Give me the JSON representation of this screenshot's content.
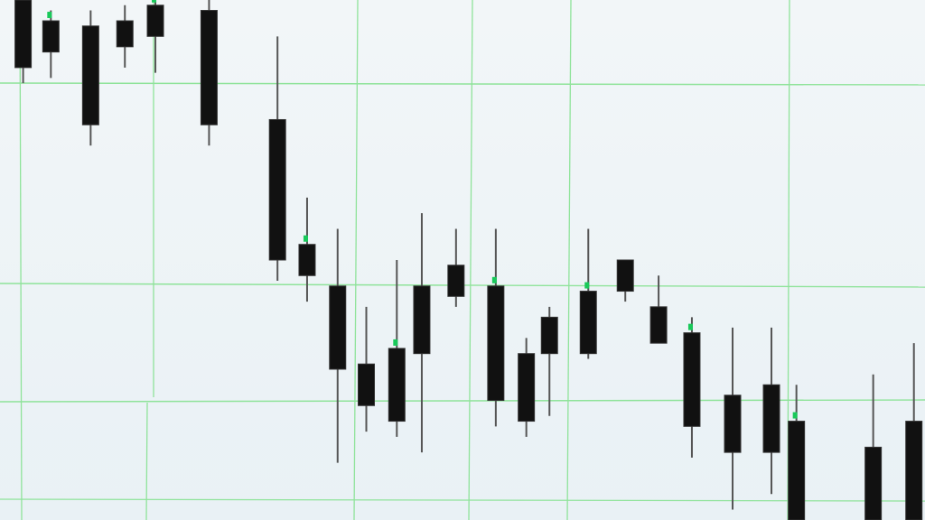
{
  "colors": {
    "background": "#edf3f6",
    "grid": "#8fe39a",
    "candle_body": "#111111",
    "candle_wick": "#555555",
    "accent_green": "#19c95a"
  },
  "chart_data": {
    "type": "candlestick",
    "title": "",
    "xlabel": "",
    "ylabel": "",
    "grid": true,
    "legend": "none",
    "ylim": [
      0,
      100
    ],
    "xlim": [
      0,
      100
    ],
    "candles": [
      {
        "x": 2.5,
        "open": 100,
        "close": 87,
        "high": 100,
        "low": 84
      },
      {
        "x": 5.5,
        "open": 96,
        "close": 90,
        "high": 98,
        "low": 85
      },
      {
        "x": 9.8,
        "open": 95,
        "close": 76,
        "high": 98,
        "low": 72
      },
      {
        "x": 13.5,
        "open": 96,
        "close": 91,
        "high": 99,
        "low": 87
      },
      {
        "x": 16.8,
        "open": 99,
        "close": 93,
        "high": 100,
        "low": 86
      },
      {
        "x": 22.6,
        "open": 98,
        "close": 76,
        "high": 100,
        "low": 72
      },
      {
        "x": 30.0,
        "open": 77,
        "close": 50,
        "high": 93,
        "low": 46
      },
      {
        "x": 33.2,
        "open": 53,
        "close": 47,
        "high": 62,
        "low": 42
      },
      {
        "x": 36.5,
        "open": 45,
        "close": 29,
        "high": 56,
        "low": 11
      },
      {
        "x": 39.6,
        "open": 30,
        "close": 22,
        "high": 41,
        "low": 17
      },
      {
        "x": 42.9,
        "open": 33,
        "close": 19,
        "high": 50,
        "low": 16
      },
      {
        "x": 45.6,
        "open": 45,
        "close": 32,
        "high": 59,
        "low": 13
      },
      {
        "x": 49.3,
        "open": 49,
        "close": 43,
        "high": 56,
        "low": 41
      },
      {
        "x": 53.6,
        "open": 45,
        "close": 23,
        "high": 56,
        "low": 18
      },
      {
        "x": 56.9,
        "open": 32,
        "close": 19,
        "high": 35,
        "low": 16
      },
      {
        "x": 59.4,
        "open": 39,
        "close": 32,
        "high": 41,
        "low": 20
      },
      {
        "x": 63.6,
        "open": 44,
        "close": 32,
        "high": 56,
        "low": 31
      },
      {
        "x": 67.6,
        "open": 50,
        "close": 44,
        "high": 50,
        "low": 42
      },
      {
        "x": 71.2,
        "open": 41,
        "close": 34,
        "high": 47,
        "low": 34
      },
      {
        "x": 74.8,
        "open": 36,
        "close": 18,
        "high": 39,
        "low": 12
      },
      {
        "x": 79.2,
        "open": 24,
        "close": 13,
        "high": 37,
        "low": 2
      },
      {
        "x": 83.4,
        "open": 26,
        "close": 13,
        "high": 37,
        "low": 5
      },
      {
        "x": 86.1,
        "open": 19,
        "close": 0,
        "high": 26,
        "low": 0
      },
      {
        "x": 94.4,
        "open": 14,
        "close": 0,
        "high": 28,
        "low": 0
      },
      {
        "x": 98.8,
        "open": 19,
        "close": 0,
        "high": 34,
        "low": 0
      }
    ]
  }
}
